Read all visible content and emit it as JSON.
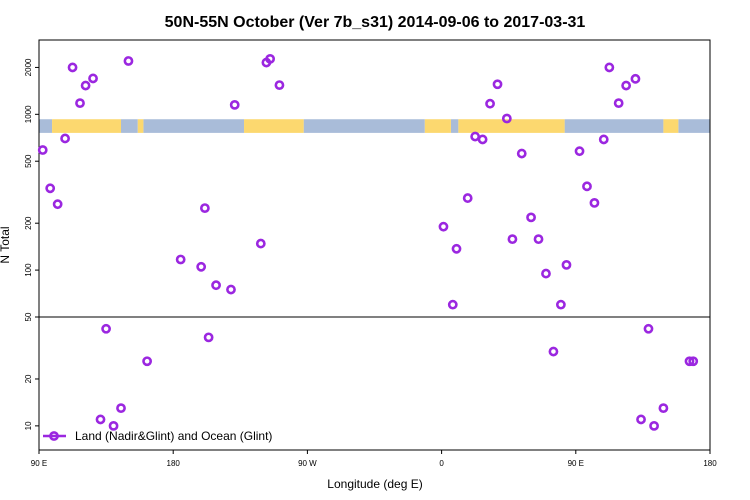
{
  "chart_data": {
    "type": "scatter",
    "title": "50N-55N October (Ver 7b_s31)   2014-09-06 to 2017-03-31",
    "xlabel": "Longitude (deg E)",
    "ylabel": "N Total",
    "xlim": [
      90,
      450
    ],
    "ylim": [
      7,
      3000
    ],
    "y_scale": "log",
    "x_ticks": [
      {
        "value": 90,
        "label": "90 E"
      },
      {
        "value": 162,
        "label": "180"
      },
      {
        "value": 234,
        "label": "90 W"
      },
      {
        "value": 306,
        "label": "0"
      },
      {
        "value": 378,
        "label": "90 E"
      },
      {
        "value": 450,
        "label": "180"
      }
    ],
    "y_ticks": [
      {
        "value": 10,
        "label": "10"
      },
      {
        "value": 20,
        "label": "20"
      },
      {
        "value": 50,
        "label": "50"
      },
      {
        "value": 100,
        "label": "100"
      },
      {
        "value": 200,
        "label": "200"
      },
      {
        "value": 500,
        "label": "500"
      },
      {
        "value": 1000,
        "label": "1000"
      },
      {
        "value": 2000,
        "label": "2000"
      }
    ],
    "reference_line": 50,
    "grid": false,
    "legend_position": "bottom-left",
    "land_ocean_strip": {
      "y_range": [
        760,
        930
      ],
      "ocean_color": "#a9bcd9",
      "land_color": "#fcd86f",
      "land_segments": [
        [
          97,
          134
        ],
        [
          143,
          146
        ],
        [
          200,
          232
        ],
        [
          297,
          311
        ],
        [
          315,
          372
        ],
        [
          425,
          433
        ]
      ],
      "ocean_segments": [
        [
          90,
          97
        ],
        [
          134,
          143
        ],
        [
          146,
          200
        ],
        [
          232,
          297
        ],
        [
          311,
          315
        ],
        [
          372,
          425
        ],
        [
          433,
          450
        ]
      ]
    },
    "series": [
      {
        "name": "Land (Nadir&Glint) and Ocean (Glint)",
        "color": "#9b27e0",
        "x": [
          92,
          96,
          100,
          104,
          108,
          112,
          115,
          119,
          123,
          126,
          130,
          134,
          138,
          148,
          166,
          177,
          179,
          181,
          185,
          193,
          195,
          209,
          212,
          214,
          219,
          307,
          312,
          314,
          320,
          324,
          328,
          332,
          336,
          341,
          344,
          349,
          354,
          358,
          362,
          366,
          370,
          373,
          380,
          384,
          388,
          393,
          396,
          401,
          405,
          410,
          413,
          417,
          420,
          425,
          439,
          441
        ],
        "y": [
          590,
          335,
          265,
          700,
          2000,
          1180,
          1530,
          1700,
          11,
          42,
          10,
          13,
          2200,
          26,
          117,
          105,
          250,
          37,
          80,
          75,
          1150,
          148,
          2150,
          2270,
          1540,
          190,
          60,
          137,
          290,
          720,
          690,
          1170,
          1560,
          940,
          158,
          560,
          218,
          158,
          95,
          30,
          60,
          108,
          580,
          345,
          270,
          690,
          2000,
          1180,
          1530,
          1690,
          11,
          42,
          10,
          13,
          26,
          26
        ]
      }
    ]
  }
}
